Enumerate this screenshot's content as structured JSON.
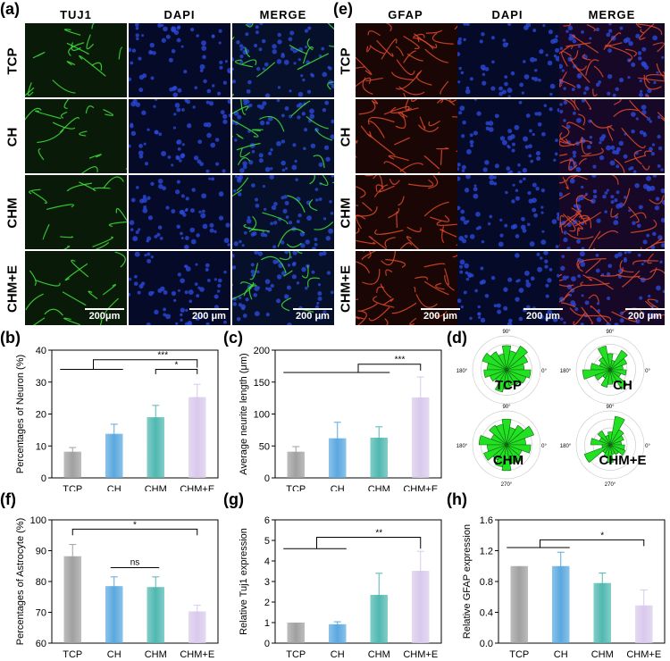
{
  "panel_labels": {
    "a": "(a)",
    "b": "(b)",
    "c": "(c)",
    "d": "(d)",
    "e": "(e)",
    "f": "(f)",
    "g": "(g)",
    "h": "(h)"
  },
  "micro_a": {
    "columns": [
      "TUJ1",
      "DAPI",
      "MERGE"
    ],
    "rows": [
      "TCP",
      "CH",
      "CHM",
      "CHM+E"
    ],
    "scale_bar": "200μm",
    "scale_bar_dapi": "200 μm",
    "scale_bar_merge": "200 μm"
  },
  "micro_e": {
    "columns": [
      "GFAP",
      "DAPI",
      "MERGE"
    ],
    "rows": [
      "TCP",
      "CH",
      "CHM",
      "CHM+E"
    ],
    "scale_bar": "200 μm"
  },
  "colors": {
    "tcp": "#a0a0a0",
    "ch": "#5aa8e0",
    "chm": "#4fb8b0",
    "chme": "#d9c9ec",
    "rose": "#22e022"
  },
  "chart_data": [
    {
      "id": "b",
      "type": "bar",
      "categories": [
        "TCP",
        "CH",
        "CHM",
        "CHM+E"
      ],
      "values": [
        8.2,
        13.8,
        19.0,
        25.3
      ],
      "errors": [
        1.3,
        3.0,
        3.7,
        4.0
      ],
      "ylabel": "Percentages of Neuron  (%)",
      "ylim": [
        0,
        40
      ],
      "yticks": [
        "0",
        "10",
        "20",
        "30",
        "40"
      ],
      "significance": [
        "***",
        "*"
      ]
    },
    {
      "id": "c",
      "type": "bar",
      "categories": [
        "TCP",
        "CH",
        "CHM",
        "CHM+E"
      ],
      "values": [
        41,
        62,
        63,
        126
      ],
      "errors": [
        8,
        25,
        17,
        32
      ],
      "ylabel": "Average neurite length (μm)",
      "ylim": [
        0,
        200
      ],
      "yticks": [
        "0",
        "50",
        "100",
        "150",
        "200"
      ],
      "significance": [
        "***"
      ]
    },
    {
      "id": "d",
      "type": "rose",
      "plots": [
        {
          "label": "TCP",
          "values": [
            0.55,
            0.7,
            0.85,
            0.6,
            0.75,
            0.5,
            0.65,
            0.8,
            0.6,
            0.7,
            0.55,
            0.45,
            0.7,
            0.6,
            0.5,
            0.55,
            0.65,
            0.75
          ]
        },
        {
          "label": "CH",
          "values": [
            0.4,
            0.55,
            0.7,
            0.3,
            0.5,
            0.75,
            0.45,
            0.35,
            0.6,
            0.85,
            0.5,
            0.3,
            0.55,
            0.45,
            0.4,
            0.7,
            0.35,
            0.5
          ]
        },
        {
          "label": "CHM",
          "values": [
            0.6,
            0.9,
            0.7,
            0.55,
            0.8,
            0.65,
            0.7,
            0.5,
            0.85,
            0.6,
            0.75,
            0.55,
            0.7,
            0.8,
            0.6,
            0.65,
            0.5,
            0.75
          ]
        },
        {
          "label": "CHM+E",
          "values": [
            0.35,
            0.45,
            0.55,
            0.9,
            0.4,
            0.3,
            0.5,
            0.35,
            0.6,
            0.25,
            0.85,
            0.3,
            0.4,
            0.55,
            0.3,
            0.35,
            0.5,
            0.45
          ]
        }
      ],
      "angle_labels": [
        "90°",
        "180°",
        "0°",
        "270°"
      ]
    },
    {
      "id": "f",
      "type": "bar",
      "categories": [
        "TCP",
        "CH",
        "CHM",
        "CHM+E"
      ],
      "values": [
        88.2,
        78.5,
        78.2,
        70.3
      ],
      "errors": [
        3.8,
        3.0,
        3.3,
        2.0
      ],
      "ylabel": "Percentages of Astrocyte (%)",
      "ylim": [
        60,
        100
      ],
      "yticks": [
        "60",
        "70",
        "80",
        "90",
        "100"
      ],
      "significance": [
        "*",
        "ns"
      ]
    },
    {
      "id": "g",
      "type": "bar",
      "categories": [
        "TCP",
        "CH",
        "CHM",
        "CHM+E"
      ],
      "values": [
        1.0,
        0.92,
        2.35,
        3.52
      ],
      "errors": [
        0.0,
        0.12,
        1.05,
        0.95
      ],
      "ylabel": "Relative Tuj1 expression",
      "ylim": [
        0,
        6
      ],
      "yticks": [
        "0",
        "1",
        "2",
        "3",
        "4",
        "5",
        "6"
      ],
      "significance": [
        "**"
      ]
    },
    {
      "id": "h",
      "type": "bar",
      "categories": [
        "TCP",
        "CH",
        "CHM",
        "CHM+E"
      ],
      "values": [
        1.0,
        1.0,
        0.78,
        0.49
      ],
      "errors": [
        0.0,
        0.18,
        0.13,
        0.2
      ],
      "ylabel": "Relative GFAP expression",
      "ylim": [
        0,
        1.6
      ],
      "yticks": [
        "0.0",
        "0.4",
        "0.8",
        "1.2",
        "1.6"
      ],
      "significance": [
        "*"
      ]
    }
  ]
}
